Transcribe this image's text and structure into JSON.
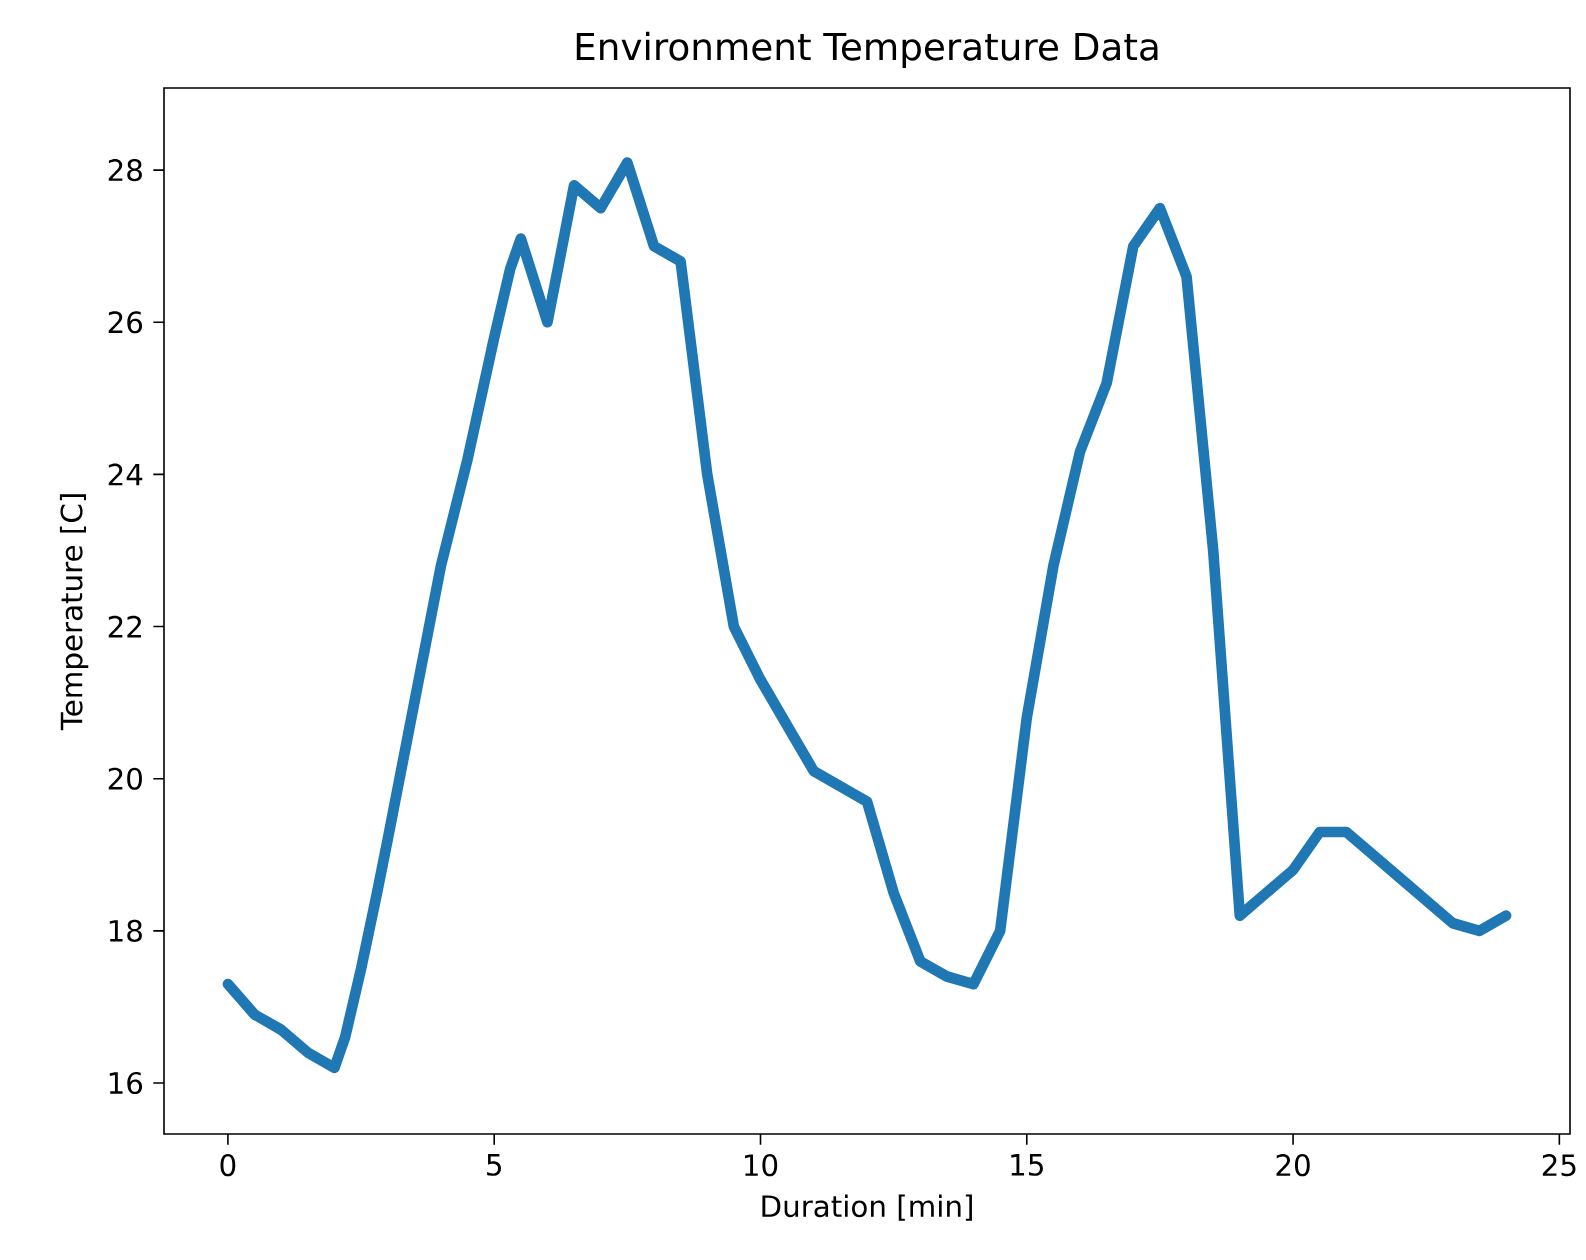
{
  "chart_data": {
    "type": "line",
    "title": "Environment Temperature Data",
    "xlabel": "Duration [min]",
    "ylabel": "Temperature [C]",
    "x": [
      0,
      0.5,
      1.0,
      1.5,
      2.0,
      2.2,
      2.5,
      2.8,
      3.0,
      3.5,
      4.0,
      4.5,
      5.0,
      5.3,
      5.5,
      6.0,
      6.5,
      7.0,
      7.5,
      8.0,
      8.5,
      9.0,
      9.5,
      10.0,
      10.5,
      11.0,
      11.5,
      12.0,
      12.5,
      13.0,
      13.5,
      14.0,
      14.5,
      15.0,
      15.5,
      16.0,
      16.5,
      17.0,
      17.5,
      18.0,
      18.5,
      19.0,
      19.5,
      20.0,
      20.5,
      21.0,
      21.5,
      22.0,
      22.5,
      23.0,
      23.5,
      24.0
    ],
    "series": [
      {
        "color": "#1f77b4",
        "values": [
          17.3,
          16.9,
          16.7,
          16.4,
          16.2,
          16.6,
          17.5,
          18.5,
          19.2,
          21.0,
          22.8,
          24.2,
          25.8,
          26.7,
          27.1,
          26.0,
          27.8,
          27.5,
          28.1,
          27.0,
          26.8,
          24.0,
          22.0,
          21.3,
          20.7,
          20.1,
          19.9,
          19.7,
          18.5,
          17.6,
          17.4,
          17.3,
          18.0,
          20.8,
          22.8,
          24.3,
          25.2,
          27.0,
          27.5,
          26.6,
          23.0,
          18.2,
          18.5,
          18.8,
          19.3,
          19.3,
          19.0,
          18.7,
          18.4,
          18.1,
          18.0,
          18.2
        ]
      }
    ],
    "xlim": [
      -1.2,
      25.2
    ],
    "ylim": [
      15.33,
      29.08
    ],
    "xticks": [
      0,
      5,
      10,
      15,
      20,
      25
    ],
    "yticks": [
      16,
      18,
      20,
      22,
      24,
      26,
      28
    ],
    "grid": false,
    "marker": "none",
    "line_style": "solid"
  }
}
